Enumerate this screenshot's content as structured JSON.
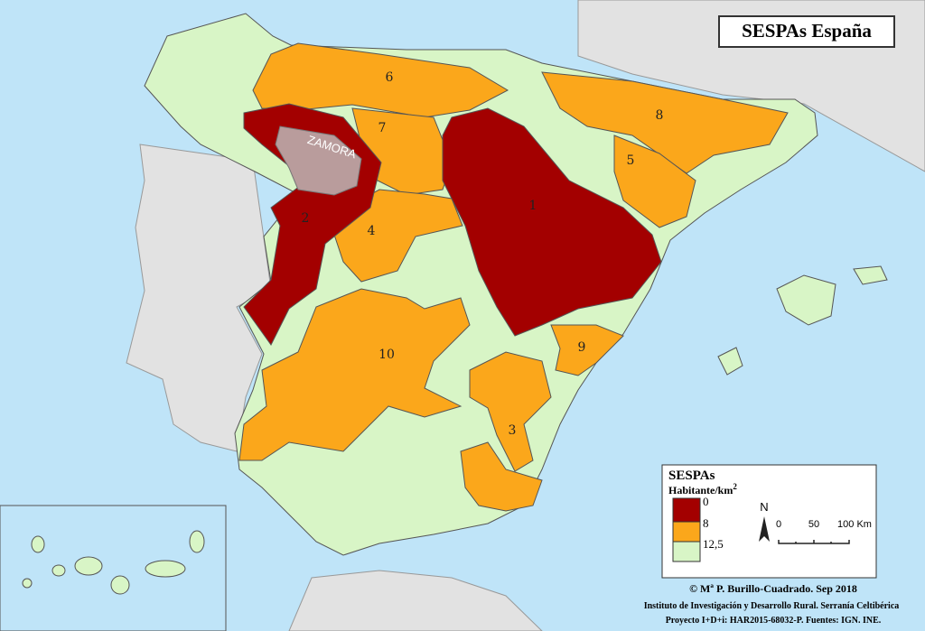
{
  "map": {
    "title": "SESPAs España",
    "region_labels": [
      "1",
      "2",
      "3",
      "4",
      "5",
      "6",
      "7",
      "8",
      "9",
      "10"
    ],
    "highlight_label": "ZAMORA",
    "legend": {
      "title": "SESPAs",
      "unit": "Habitante/km",
      "unit_exponent": "2",
      "breaks": [
        "0",
        "8",
        "12,5"
      ]
    },
    "north": "N",
    "scale": [
      "0",
      "50",
      "100 Km"
    ],
    "credits": [
      "© Mª P. Burillo-Cuadrado. Sep 2018",
      "Instituto de Investigación y Desarrollo Rural. Serranía Celtibérica",
      "Proyecto I+D+i: HAR2015-68032-P. Fuentes: IGN. INE."
    ]
  }
}
